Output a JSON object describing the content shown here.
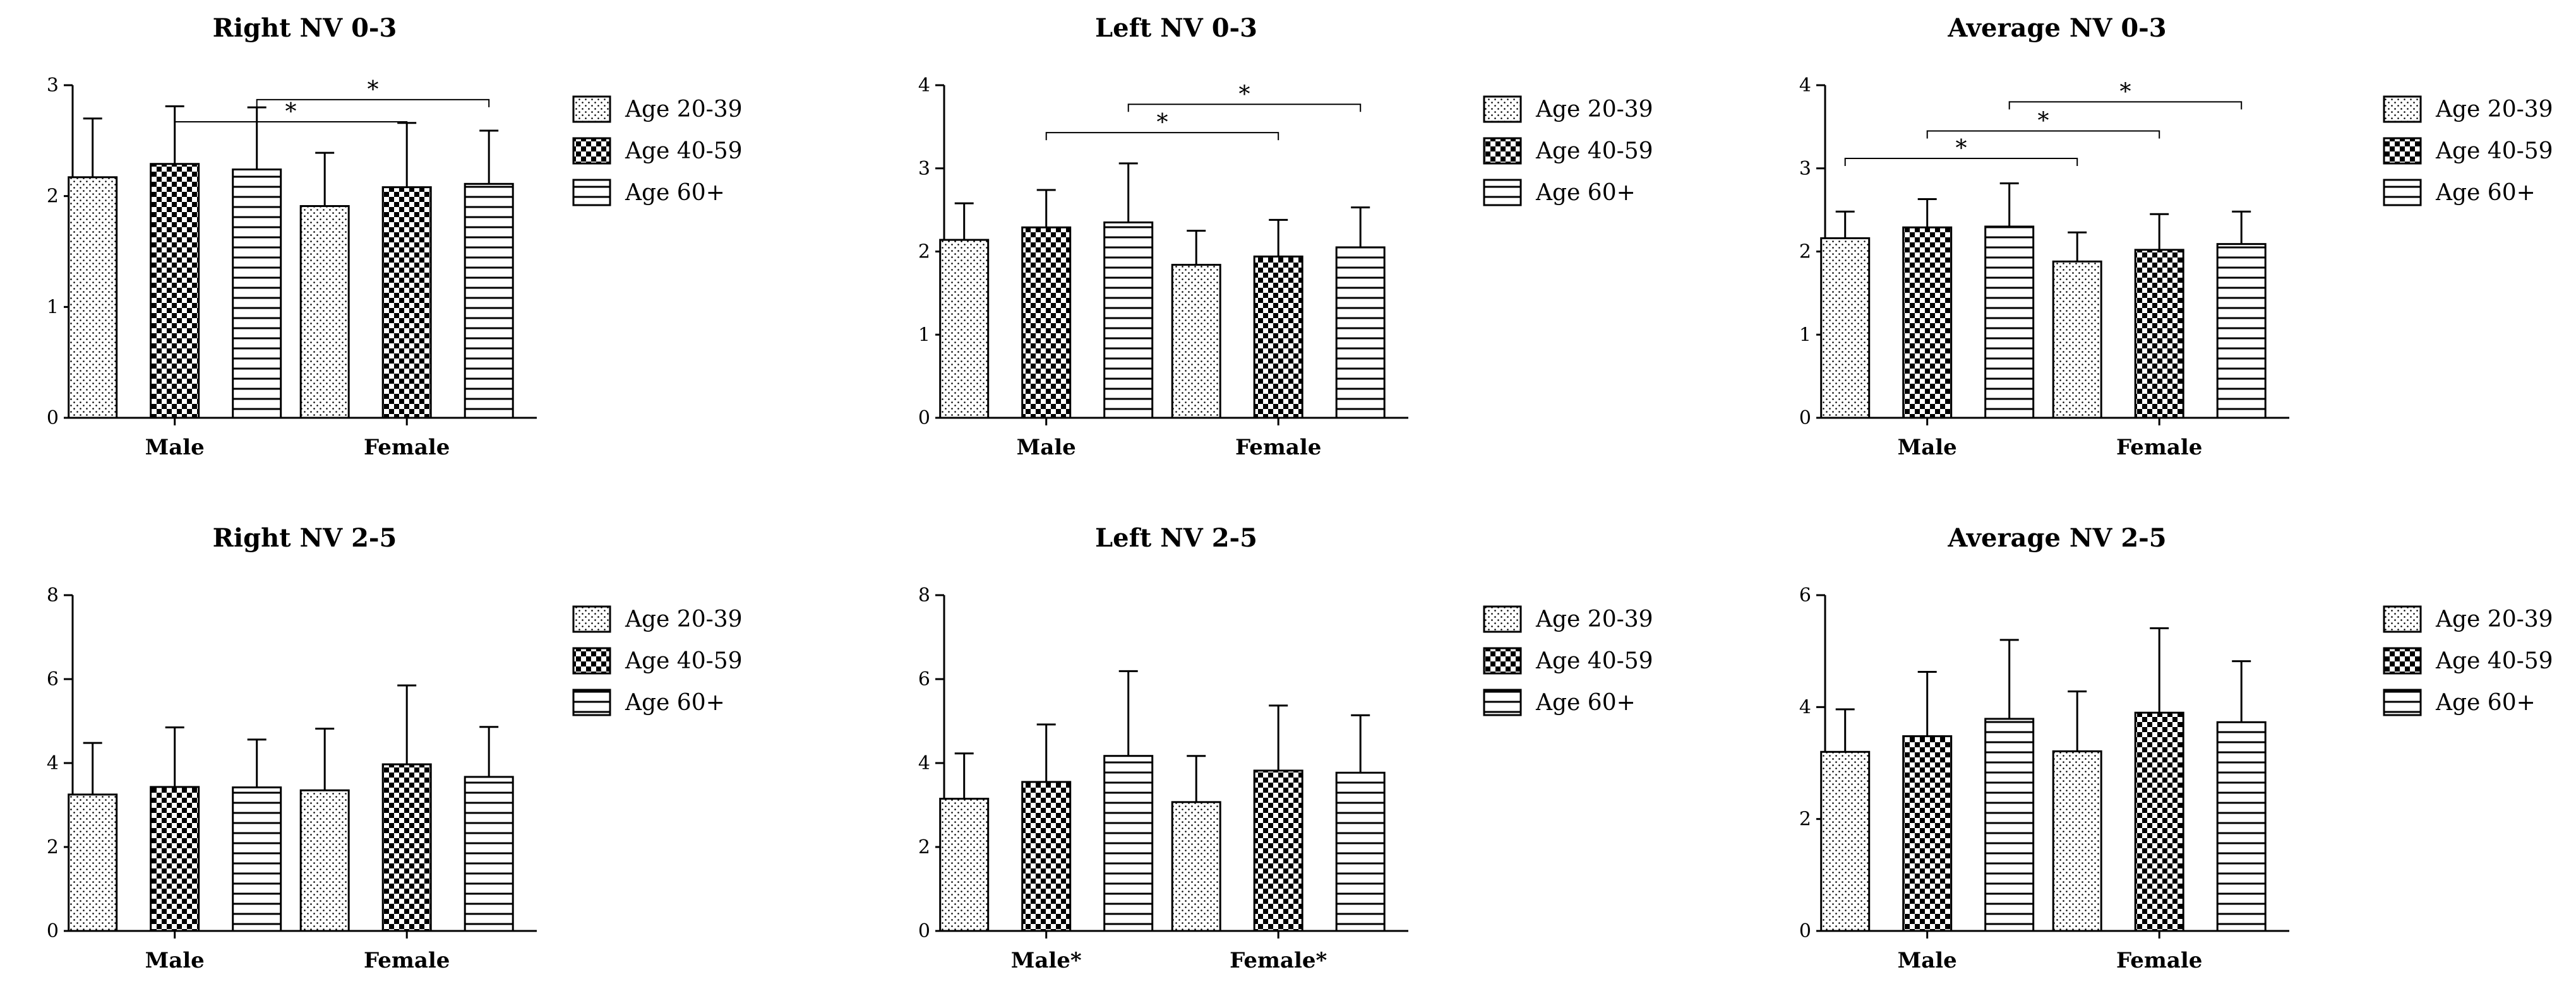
{
  "figure": {
    "description_free": true
  },
  "legend": {
    "entries": [
      "Age 20-39",
      "Age 40-59",
      "Age 60+"
    ],
    "patterns": [
      "dots",
      "checker",
      "hlines"
    ]
  },
  "chart_data": [
    {
      "type": "bar",
      "title": "Right NV 0-3",
      "categories": [
        "Male",
        "Female"
      ],
      "series": [
        {
          "name": "Age 20-39",
          "values": [
            2.17,
            1.91
          ],
          "errors": [
            0.53,
            0.48
          ]
        },
        {
          "name": "Age 40-59",
          "values": [
            2.29,
            2.08
          ],
          "errors": [
            0.52,
            0.58
          ]
        },
        {
          "name": "Age 60+",
          "values": [
            2.24,
            2.11
          ],
          "errors": [
            0.56,
            0.48
          ]
        }
      ],
      "ylim": [
        0,
        3
      ],
      "yticks": [
        0,
        1,
        2,
        3
      ],
      "significance": [
        {
          "from": [
            0,
            1
          ],
          "to": [
            1,
            1
          ],
          "label": "*",
          "y": 2.67
        },
        {
          "from": [
            0,
            2
          ],
          "to": [
            1,
            2
          ],
          "label": "*",
          "y": 2.87
        }
      ]
    },
    {
      "type": "bar",
      "title": "Left NV 0-3",
      "categories": [
        "Male",
        "Female"
      ],
      "series": [
        {
          "name": "Age 20-39",
          "values": [
            2.14,
            1.84
          ],
          "errors": [
            0.44,
            0.41
          ]
        },
        {
          "name": "Age 40-59",
          "values": [
            2.29,
            1.94
          ],
          "errors": [
            0.45,
            0.44
          ]
        },
        {
          "name": "Age 60+",
          "values": [
            2.35,
            2.05
          ],
          "errors": [
            0.71,
            0.48
          ]
        }
      ],
      "ylim": [
        0,
        4
      ],
      "yticks": [
        0,
        1,
        2,
        3,
        4
      ],
      "significance": [
        {
          "from": [
            0,
            1
          ],
          "to": [
            1,
            1
          ],
          "label": "*",
          "y": 3.43
        },
        {
          "from": [
            0,
            2
          ],
          "to": [
            1,
            2
          ],
          "label": "*",
          "y": 3.77
        }
      ]
    },
    {
      "type": "bar",
      "title": "Average NV 0-3",
      "categories": [
        "Male",
        "Female"
      ],
      "series": [
        {
          "name": "Age 20-39",
          "values": [
            2.16,
            1.88
          ],
          "errors": [
            0.32,
            0.35
          ]
        },
        {
          "name": "Age 40-59",
          "values": [
            2.29,
            2.02
          ],
          "errors": [
            0.34,
            0.43
          ]
        },
        {
          "name": "Age 60+",
          "values": [
            2.3,
            2.09
          ],
          "errors": [
            0.52,
            0.39
          ]
        }
      ],
      "ylim": [
        0,
        4
      ],
      "yticks": [
        0,
        1,
        2,
        3,
        4
      ],
      "significance": [
        {
          "from": [
            0,
            0
          ],
          "to": [
            1,
            0
          ],
          "label": "*",
          "y": 3.12
        },
        {
          "from": [
            0,
            1
          ],
          "to": [
            1,
            1
          ],
          "label": "*",
          "y": 3.45
        },
        {
          "from": [
            0,
            2
          ],
          "to": [
            1,
            2
          ],
          "label": "*",
          "y": 3.8
        }
      ]
    },
    {
      "type": "bar",
      "title": "Right NV 2-5",
      "categories": [
        "Male",
        "Female"
      ],
      "series": [
        {
          "name": "Age 20-39",
          "values": [
            3.25,
            3.35
          ],
          "errors": [
            1.23,
            1.47
          ]
        },
        {
          "name": "Age 40-59",
          "values": [
            3.43,
            3.97
          ],
          "errors": [
            1.42,
            1.88
          ]
        },
        {
          "name": "Age 60+",
          "values": [
            3.42,
            3.67
          ],
          "errors": [
            1.14,
            1.19
          ]
        }
      ],
      "ylim": [
        0,
        8
      ],
      "yticks": [
        0,
        2,
        4,
        6,
        8
      ],
      "significance": []
    },
    {
      "type": "bar",
      "title": "Left NV 2-5",
      "categories": [
        "Male*",
        "Female*"
      ],
      "series": [
        {
          "name": "Age 20-39",
          "values": [
            3.15,
            3.07
          ],
          "errors": [
            1.08,
            1.1
          ]
        },
        {
          "name": "Age 40-59",
          "values": [
            3.55,
            3.82
          ],
          "errors": [
            1.37,
            1.55
          ]
        },
        {
          "name": "Age 60+",
          "values": [
            4.17,
            3.77
          ],
          "errors": [
            2.02,
            1.37
          ]
        }
      ],
      "ylim": [
        0,
        8
      ],
      "yticks": [
        0,
        2,
        4,
        6,
        8
      ],
      "significance": []
    },
    {
      "type": "bar",
      "title": "Average NV 2-5",
      "categories": [
        "Male",
        "Female"
      ],
      "series": [
        {
          "name": "Age 20-39",
          "values": [
            3.2,
            3.21
          ],
          "errors": [
            0.76,
            1.07
          ]
        },
        {
          "name": "Age 40-59",
          "values": [
            3.48,
            3.9
          ],
          "errors": [
            1.15,
            1.51
          ]
        },
        {
          "name": "Age 60+",
          "values": [
            3.79,
            3.73
          ],
          "errors": [
            1.41,
            1.09
          ]
        }
      ],
      "ylim": [
        0,
        6
      ],
      "yticks": [
        0,
        2,
        4,
        6
      ],
      "significance": []
    }
  ]
}
